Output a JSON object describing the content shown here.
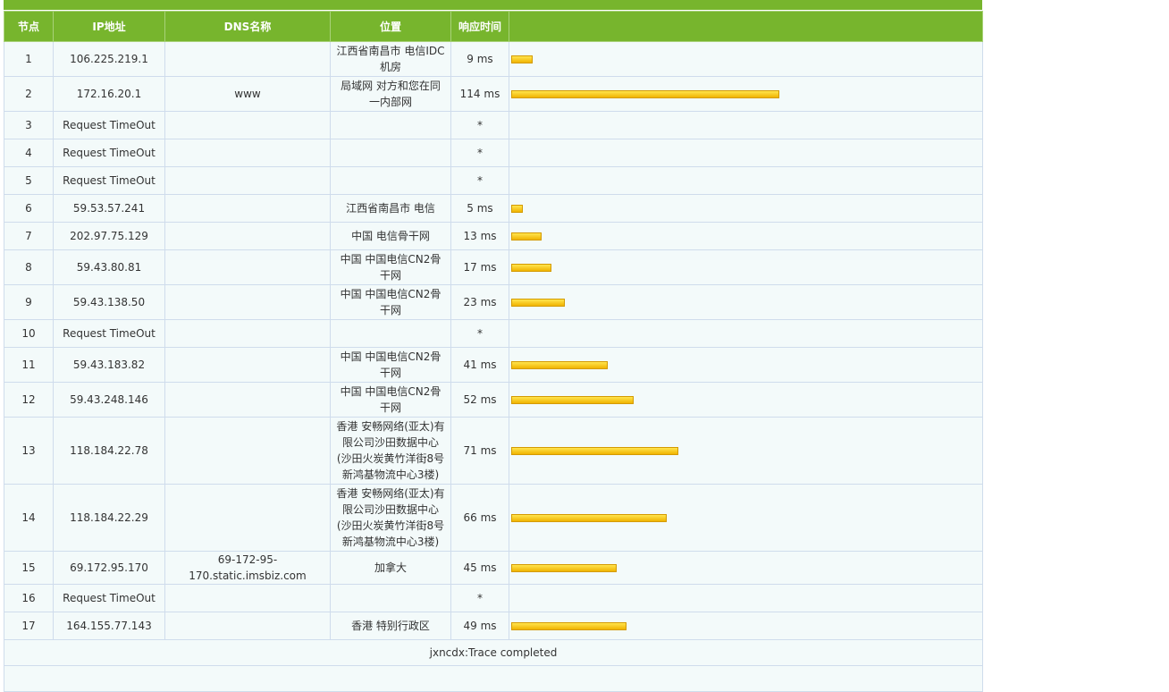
{
  "table": {
    "columns": [
      "节点",
      "IP地址",
      "DNS名称",
      "位置",
      "响应时间"
    ],
    "rows": [
      {
        "node": 1,
        "ip": "106.225.219.1",
        "location": "江西省南昌市 电信IDC机房",
        "time_ms": 9,
        "time_label": "9 ms"
      },
      {
        "node": 2,
        "ip": "172.16.20.1",
        "dns": "www",
        "location": "局域网 对方和您在同一内部网",
        "time_ms": 114,
        "time_label": "114 ms"
      },
      {
        "node": 3,
        "ip": "Request TimeOut",
        "time_label": "*"
      },
      {
        "node": 4,
        "ip": "Request TimeOut",
        "time_label": "*"
      },
      {
        "node": 5,
        "ip": "Request TimeOut",
        "time_label": "*"
      },
      {
        "node": 6,
        "ip": "59.53.57.241",
        "location": "江西省南昌市 电信",
        "time_ms": 5,
        "time_label": "5 ms"
      },
      {
        "node": 7,
        "ip": "202.97.75.129",
        "location": "中国 电信骨干网",
        "time_ms": 13,
        "time_label": "13 ms"
      },
      {
        "node": 8,
        "ip": "59.43.80.81",
        "location": "中国 中国电信CN2骨干网",
        "time_ms": 17,
        "time_label": "17 ms"
      },
      {
        "node": 9,
        "ip": "59.43.138.50",
        "location": "中国 中国电信CN2骨干网",
        "time_ms": 23,
        "time_label": "23 ms"
      },
      {
        "node": 10,
        "ip": "Request TimeOut",
        "time_label": "*"
      },
      {
        "node": 11,
        "ip": "59.43.183.82",
        "location": "中国 中国电信CN2骨干网",
        "time_ms": 41,
        "time_label": "41 ms"
      },
      {
        "node": 12,
        "ip": "59.43.248.146",
        "location": "中国 中国电信CN2骨干网",
        "time_ms": 52,
        "time_label": "52 ms"
      },
      {
        "node": 13,
        "ip": "118.184.22.78",
        "location": "香港 安畅网络(亚太)有限公司沙田数据中心(沙田火炭黄竹洋街8号新鸿基物流中心3楼)",
        "time_ms": 71,
        "time_label": "71 ms"
      },
      {
        "node": 14,
        "ip": "118.184.22.29",
        "location": "香港 安畅网络(亚太)有限公司沙田数据中心(沙田火炭黄竹洋街8号新鸿基物流中心3楼)",
        "time_ms": 66,
        "time_label": "66 ms"
      },
      {
        "node": 15,
        "ip": "69.172.95.170",
        "dns": "69-172-95-170.static.imsbiz.com",
        "location": "加拿大",
        "time_ms": 45,
        "time_label": "45 ms"
      },
      {
        "node": 16,
        "ip": "Request TimeOut",
        "time_label": "*"
      },
      {
        "node": 17,
        "ip": "164.155.77.143",
        "location": "香港 特别行政区",
        "time_ms": 49,
        "time_label": "49 ms"
      }
    ],
    "footer": "jxncdx:Trace completed"
  }
}
